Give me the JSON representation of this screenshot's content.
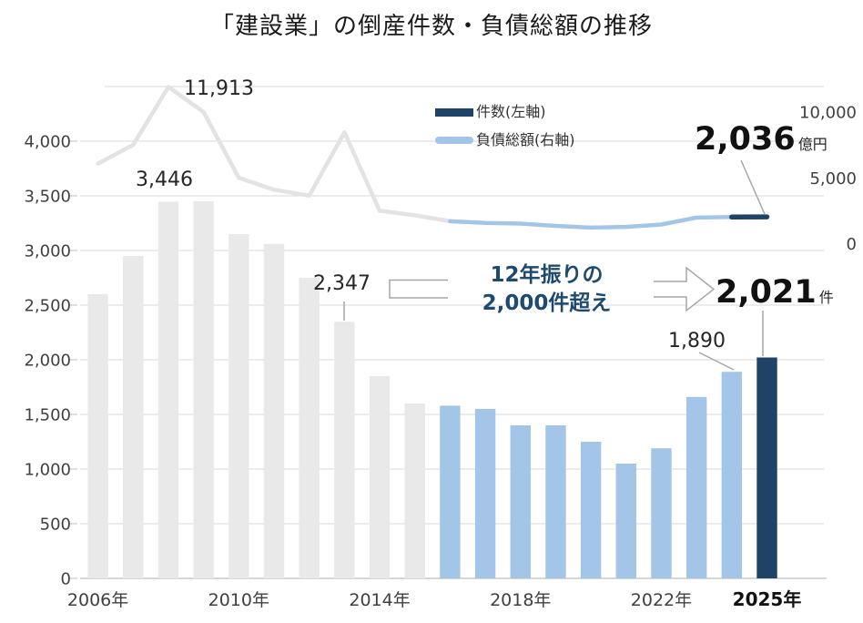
{
  "title": "「建設業」の倒産件数・負債総額の推移",
  "legend": [
    {
      "label": "件数(左軸)",
      "swatch": "rect"
    },
    {
      "label": "負債総額(右軸)",
      "swatch": "line"
    }
  ],
  "colors": {
    "navy": "#1F4366",
    "light_blue": "#A3C6E8",
    "gray_bar": "#E9E9E9",
    "gray_line": "#E3E3E3",
    "grid": "#D9D9D9",
    "axis_line": "#C9C9C9",
    "axis_text": "#404040",
    "annotation_text": "#262626",
    "callout_text": "#1F4A70",
    "leader": "#A6A6A6"
  },
  "chart_data": {
    "type": "combo-bar-line",
    "title": "「建設業」の倒産件数・負債総額の推移",
    "categories": [
      2006,
      2007,
      2008,
      2009,
      2010,
      2011,
      2012,
      2013,
      2014,
      2015,
      2016,
      2017,
      2018,
      2019,
      2020,
      2021,
      2022,
      2023,
      2024,
      2025
    ],
    "series": [
      {
        "name": "件数(左軸)",
        "type": "bar",
        "axis": "left",
        "unit": "件",
        "values": [
          2600,
          2950,
          3446,
          3450,
          3150,
          3060,
          2750,
          2347,
          1850,
          1600,
          1580,
          1550,
          1400,
          1400,
          1250,
          1050,
          1190,
          1660,
          1890,
          2021
        ]
      },
      {
        "name": "負債総額(右軸)",
        "type": "line",
        "axis": "right",
        "unit": "億円",
        "values": [
          6080,
          7500,
          11913,
          10000,
          5000,
          4100,
          3650,
          8450,
          2500,
          2150,
          1700,
          1580,
          1520,
          1350,
          1220,
          1270,
          1450,
          1980,
          2020,
          2036
        ]
      }
    ],
    "bar_color_segments": [
      {
        "from": 2006,
        "to": 2015,
        "color": "#E9E9E9"
      },
      {
        "from": 2016,
        "to": 2024,
        "color": "#A3C6E8"
      },
      {
        "from": 2025,
        "to": 2025,
        "color": "#1F4366"
      }
    ],
    "line_color_segments": [
      {
        "from": 2006,
        "to": 2016,
        "color": "#E3E3E3",
        "width": 4.5
      },
      {
        "from": 2016,
        "to": 2024,
        "color": "#A3C6E8",
        "width": 4.5
      },
      {
        "from": 2024,
        "to": 2025,
        "color": "#1F4366",
        "width": 5.5
      }
    ],
    "left_axis": {
      "range": [
        0,
        4500
      ],
      "ticks": [
        {
          "v": 0,
          "label": "0"
        },
        {
          "v": 500,
          "label": "500"
        },
        {
          "v": 1000,
          "label": "1,000"
        },
        {
          "v": 1500,
          "label": "1,500"
        },
        {
          "v": 2000,
          "label": "2,000"
        },
        {
          "v": 2500,
          "label": "2,500"
        },
        {
          "v": 3000,
          "label": "3,000"
        },
        {
          "v": 3500,
          "label": "3,500"
        },
        {
          "v": 4000,
          "label": "4,000"
        }
      ]
    },
    "right_axis": {
      "range": [
        0,
        12500
      ],
      "ticks": [
        {
          "v": 0,
          "label": "0"
        },
        {
          "v": 5000,
          "label": "5,000"
        },
        {
          "v": 10000,
          "label": "10,000"
        }
      ]
    },
    "x_axis": {
      "labels": [
        {
          "year": 2006,
          "label": "2006年"
        },
        {
          "year": 2010,
          "label": "2010年"
        },
        {
          "year": 2014,
          "label": "2014年"
        },
        {
          "year": 2018,
          "label": "2018年"
        },
        {
          "year": 2022,
          "label": "2022年"
        },
        {
          "year": 2025,
          "label": "2025年",
          "bold": true
        }
      ]
    },
    "grid": true,
    "legend_position": "top-center"
  },
  "annotations": {
    "peak_2008": "11,913",
    "bar_2008": "3,446",
    "bar_2013": "2,347",
    "bar_2024": "1,890",
    "count_2025": {
      "value": "2,021",
      "unit": "件"
    },
    "liab_2025": {
      "value": "2,036",
      "unit": "億円"
    },
    "callout": {
      "line1": "12年振りの",
      "line2": "2,000件超え"
    }
  }
}
